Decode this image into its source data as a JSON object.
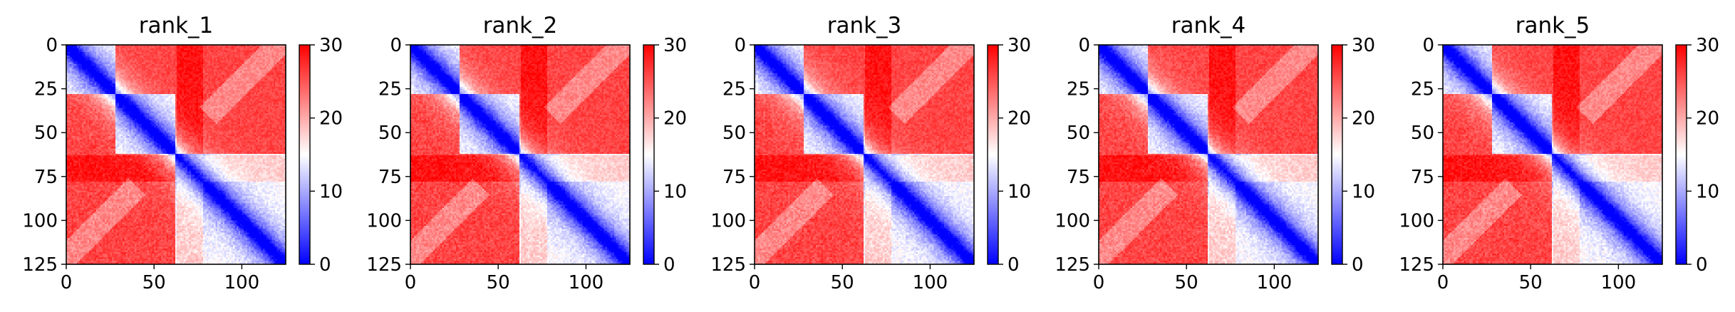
{
  "chart_data": [
    {
      "type": "heatmap",
      "title": "rank_1",
      "xlim": [
        0,
        125
      ],
      "ylim": [
        125,
        0
      ],
      "x_ticks": [
        "0",
        "50",
        "100"
      ],
      "y_ticks": [
        "0",
        "25",
        "50",
        "75",
        "100",
        "125"
      ],
      "colorbar": {
        "range": [
          0,
          30
        ],
        "ticks": [
          "0",
          "10",
          "20",
          "30"
        ],
        "colormap": [
          "#0000ff",
          "#ffffff",
          "#ff0000"
        ]
      },
      "structure": {
        "diagonal": "low",
        "blocks": [
          [
            0,
            28
          ],
          [
            28,
            62
          ],
          [
            62,
            125
          ]
        ]
      }
    },
    {
      "type": "heatmap",
      "title": "rank_2",
      "xlim": [
        0,
        125
      ],
      "ylim": [
        125,
        0
      ],
      "x_ticks": [
        "0",
        "50",
        "100"
      ],
      "y_ticks": [
        "0",
        "25",
        "50",
        "75",
        "100",
        "125"
      ],
      "colorbar": {
        "range": [
          0,
          30
        ],
        "ticks": [
          "0",
          "10",
          "20",
          "30"
        ],
        "colormap": [
          "#0000ff",
          "#ffffff",
          "#ff0000"
        ]
      },
      "structure": {
        "diagonal": "low",
        "blocks": [
          [
            0,
            28
          ],
          [
            28,
            62
          ],
          [
            62,
            125
          ]
        ]
      }
    },
    {
      "type": "heatmap",
      "title": "rank_3",
      "xlim": [
        0,
        125
      ],
      "ylim": [
        125,
        0
      ],
      "x_ticks": [
        "0",
        "50",
        "100"
      ],
      "y_ticks": [
        "0",
        "25",
        "50",
        "75",
        "100",
        "125"
      ],
      "colorbar": {
        "range": [
          0,
          30
        ],
        "ticks": [
          "0",
          "10",
          "20",
          "30"
        ],
        "colormap": [
          "#0000ff",
          "#ffffff",
          "#ff0000"
        ]
      },
      "structure": {
        "diagonal": "low",
        "blocks": [
          [
            0,
            28
          ],
          [
            28,
            62
          ],
          [
            62,
            125
          ]
        ]
      }
    },
    {
      "type": "heatmap",
      "title": "rank_4",
      "xlim": [
        0,
        125
      ],
      "ylim": [
        125,
        0
      ],
      "x_ticks": [
        "0",
        "50",
        "100"
      ],
      "y_ticks": [
        "0",
        "25",
        "50",
        "75",
        "100",
        "125"
      ],
      "colorbar": {
        "range": [
          0,
          30
        ],
        "ticks": [
          "0",
          "10",
          "20",
          "30"
        ],
        "colormap": [
          "#0000ff",
          "#ffffff",
          "#ff0000"
        ]
      },
      "structure": {
        "diagonal": "low",
        "blocks": [
          [
            0,
            28
          ],
          [
            28,
            62
          ],
          [
            62,
            125
          ]
        ]
      }
    },
    {
      "type": "heatmap",
      "title": "rank_5",
      "xlim": [
        0,
        125
      ],
      "ylim": [
        125,
        0
      ],
      "x_ticks": [
        "0",
        "50",
        "100"
      ],
      "y_ticks": [
        "0",
        "25",
        "50",
        "75",
        "100",
        "125"
      ],
      "colorbar": {
        "range": [
          0,
          30
        ],
        "ticks": [
          "0",
          "10",
          "20",
          "30"
        ],
        "colormap": [
          "#0000ff",
          "#ffffff",
          "#ff0000"
        ]
      },
      "structure": {
        "diagonal": "low",
        "blocks": [
          [
            0,
            28
          ],
          [
            28,
            62
          ],
          [
            62,
            125
          ]
        ]
      }
    }
  ]
}
